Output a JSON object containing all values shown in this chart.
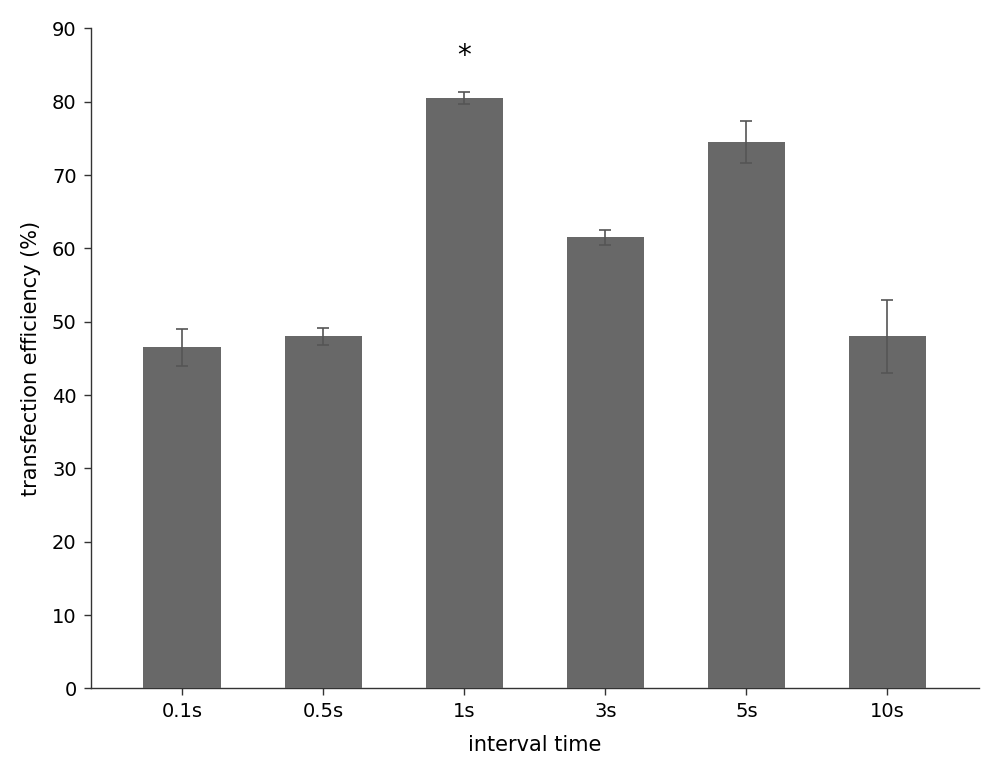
{
  "categories": [
    "0.1s",
    "0.5s",
    "1s",
    "3s",
    "5s",
    "10s"
  ],
  "values": [
    46.5,
    48.0,
    80.5,
    61.5,
    74.5,
    48.0
  ],
  "errors": [
    2.5,
    1.2,
    0.8,
    1.0,
    2.8,
    5.0
  ],
  "bar_color": "#686868",
  "ylabel": "transfection efficiency (%)",
  "xlabel": "interval time",
  "ylim": [
    0,
    90
  ],
  "yticks": [
    0,
    10,
    20,
    30,
    40,
    50,
    60,
    70,
    80,
    90
  ],
  "asterisk_index": 2,
  "asterisk_text": "*",
  "asterisk_fontsize": 20,
  "background_color": "#ffffff",
  "bar_width": 0.55,
  "tick_fontsize": 14,
  "label_fontsize": 15,
  "error_capsize": 4,
  "error_linewidth": 1.2,
  "error_color": "#555555",
  "spine_color": "#333333",
  "tick_color": "#333333"
}
